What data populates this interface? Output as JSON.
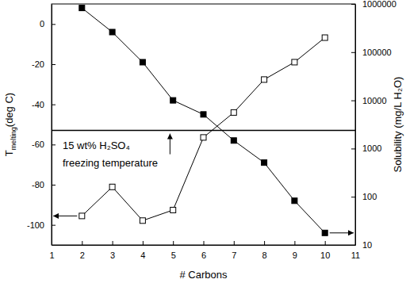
{
  "chart_data": {
    "type": "line",
    "xlabel": "# Carbons",
    "ylabel": [
      "T",
      "melting",
      "(deg C)"
    ],
    "y2label": "Solubility (mg/L H₂O)",
    "x": [
      2,
      3,
      4,
      5,
      6,
      7,
      8,
      9,
      10
    ],
    "xlim": [
      1,
      11
    ],
    "xticks": [
      1,
      2,
      3,
      4,
      5,
      6,
      7,
      8,
      9,
      10,
      11
    ],
    "ylim": [
      -110,
      10
    ],
    "yticks": [
      -100,
      -80,
      -60,
      -40,
      -20,
      0
    ],
    "y2lim": [
      10,
      1000000
    ],
    "y2ticks": [
      10,
      100,
      1000,
      10000,
      100000,
      1000000
    ],
    "log": "y2",
    "series": [
      {
        "values": [
          8,
          -4,
          -19,
          -38,
          -45,
          -58,
          -69,
          -88,
          -104
        ],
        "color": "#000000",
        "marker": "square",
        "line_style": "solid"
      },
      {
        "values": [
          40,
          160,
          32,
          53,
          1700,
          5600,
          27000,
          62000,
          200000
        ],
        "color": "#000000",
        "marker": "square-open",
        "line_style": "solid",
        "axis": "y2"
      }
    ],
    "annotations": [
      {
        "type": "hline",
        "y": -53,
        "label": [
          "15 wt% H₂SO₄",
          "freezing temperature"
        ]
      }
    ]
  }
}
